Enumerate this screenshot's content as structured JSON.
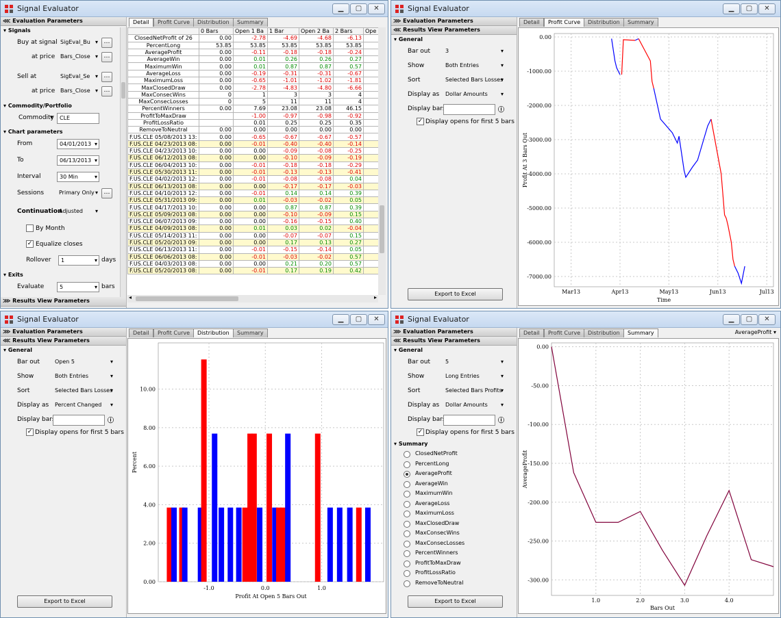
{
  "window_title": "Signal Evaluator",
  "tabs": [
    "Detail",
    "Profit Curve",
    "Distribution",
    "Summary"
  ],
  "panel": {
    "evaluation": "Evaluation Parameters",
    "results": "Results View Parameters"
  },
  "w1": {
    "signals": "Signals",
    "buy_at_signal": "Buy at signal",
    "buy_signal": "SigEval_Bu",
    "at_price": "at price",
    "buy_price": "Bars_Close",
    "sell_at": "Sell at",
    "sell_signal": "SigEval_Se",
    "sell_price": "Bars_Close",
    "commodity_group": "Commodity/Portfolio",
    "commodity_label": "Commodity",
    "commodity": "CLE",
    "chart_params": "Chart parameters",
    "from_label": "From",
    "from": "04/01/2013",
    "to_label": "To",
    "to": "06/13/2013",
    "interval_label": "Interval",
    "interval": "30 Min",
    "sessions_label": "Sessions",
    "sessions": "Primary Only",
    "continuation_label": "Continuation",
    "continuation": "Adjusted",
    "by_month": "By Month",
    "equalize": "Equalize closes",
    "rollover_label": "Rollover",
    "rollover": "1",
    "days": "days",
    "exits": "Exits",
    "evaluate_label": "Evaluate",
    "evaluate": "5",
    "bars": "bars",
    "table_headers": [
      "",
      "0 Bars",
      "Open 1 Ba",
      "1 Bar",
      "Open 2 Ba",
      "2 Bars",
      "Ope"
    ],
    "rows": [
      {
        "n": "ClosedNetProfit of 26",
        "v": [
          "0.00",
          "-2.78",
          "-4.69",
          "-4.68",
          "-6.13"
        ]
      },
      {
        "n": "PercentLong",
        "v": [
          "53.85",
          "53.85",
          "53.85",
          "53.85",
          "53.85"
        ]
      },
      {
        "n": "AverageProfit",
        "v": [
          "0.00",
          "-0.11",
          "-0.18",
          "-0.18",
          "-0.24"
        ]
      },
      {
        "n": "AverageWin",
        "v": [
          "0.00",
          "0.01",
          "0.26",
          "0.26",
          "0.27"
        ]
      },
      {
        "n": "MaximumWin",
        "v": [
          "0.00",
          "0.01",
          "0.87",
          "0.87",
          "0.57"
        ]
      },
      {
        "n": "AverageLoss",
        "v": [
          "0.00",
          "-0.19",
          "-0.31",
          "-0.31",
          "-0.67"
        ]
      },
      {
        "n": "MaximumLoss",
        "v": [
          "0.00",
          "-0.65",
          "-1.01",
          "-1.02",
          "-1.81"
        ]
      },
      {
        "n": "MaxClosedDraw",
        "v": [
          "0.00",
          "-2.78",
          "-4.83",
          "-4.80",
          "-6.66"
        ]
      },
      {
        "n": "MaxConsecWins",
        "v": [
          "0",
          "1",
          "3",
          "3",
          "4"
        ]
      },
      {
        "n": "MaxConsecLosses",
        "v": [
          "0",
          "5",
          "11",
          "11",
          "4"
        ]
      },
      {
        "n": "PercentWinners",
        "v": [
          "0.00",
          "7.69",
          "23.08",
          "23.08",
          "46.15"
        ]
      },
      {
        "n": "ProfitToMaxDraw",
        "v": [
          "",
          "-1.00",
          "-0.97",
          "-0.98",
          "-0.92"
        ]
      },
      {
        "n": "ProfitLossRatio",
        "v": [
          "",
          "0.01",
          "0.25",
          "0.25",
          "0.35"
        ]
      },
      {
        "n": "RemoveToNeutral",
        "v": [
          "0.00",
          "0.00",
          "0.00",
          "0.00",
          "0.00"
        ]
      },
      {
        "n": "F.US.CLE  05/08/2013 13:",
        "v": [
          "0.00",
          "-0.65",
          "-0.67",
          "-0.67",
          "-0.57"
        ]
      },
      {
        "n": "F.US.CLE  04/23/2013 08:",
        "v": [
          "0.00",
          "-0.01",
          "-0.40",
          "-0.40",
          "-0.14"
        ]
      },
      {
        "n": "F.US.CLE  04/23/2013 10:",
        "v": [
          "0.00",
          "0.00",
          "-0.09",
          "-0.08",
          "-0.25"
        ]
      },
      {
        "n": "F.US.CLE  06/12/2013 08:",
        "v": [
          "0.00",
          "0.00",
          "-0.10",
          "-0.09",
          "-0.19"
        ]
      },
      {
        "n": "F.US.CLE  06/04/2013 10:",
        "v": [
          "0.00",
          "-0.01",
          "-0.18",
          "-0.18",
          "-0.29"
        ]
      },
      {
        "n": "F.US.CLE  05/30/2013 11:",
        "v": [
          "0.00",
          "-0.01",
          "-0.13",
          "-0.13",
          "-0.41"
        ]
      },
      {
        "n": "F.US.CLE  04/02/2013 12:",
        "v": [
          "0.00",
          "-0.01",
          "-0.08",
          "-0.08",
          "0.04"
        ]
      },
      {
        "n": "F.US.CLE  06/13/2013 08:",
        "v": [
          "0.00",
          "0.00",
          "-0.17",
          "-0.17",
          "-0.03"
        ]
      },
      {
        "n": "F.US.CLE  04/10/2013 12:",
        "v": [
          "0.00",
          "-0.01",
          "0.14",
          "0.14",
          "0.39"
        ]
      },
      {
        "n": "F.US.CLE  05/31/2013 09:",
        "v": [
          "0.00",
          "0.01",
          "-0.03",
          "-0.02",
          "0.05"
        ]
      },
      {
        "n": "F.US.CLE  04/17/2013 10:",
        "v": [
          "0.00",
          "0.00",
          "0.87",
          "0.87",
          "0.39"
        ]
      },
      {
        "n": "F.US.CLE  05/09/2013 08:",
        "v": [
          "0.00",
          "0.00",
          "-0.10",
          "-0.09",
          "0.15"
        ]
      },
      {
        "n": "F.US.CLE  06/07/2013 09:",
        "v": [
          "0.00",
          "0.00",
          "-0.16",
          "-0.15",
          "0.40"
        ]
      },
      {
        "n": "F.US.CLE  04/09/2013 08:",
        "v": [
          "0.00",
          "0.01",
          "0.03",
          "0.02",
          "-0.04"
        ]
      },
      {
        "n": "F.US.CLE  05/14/2013 11:",
        "v": [
          "0.00",
          "0.00",
          "-0.07",
          "-0.07",
          "0.15"
        ]
      },
      {
        "n": "F.US.CLE  05/20/2013 09:",
        "v": [
          "0.00",
          "0.00",
          "0.17",
          "0.13",
          "0.27"
        ]
      },
      {
        "n": "F.US.CLE  06/13/2013 11:",
        "v": [
          "0.00",
          "-0.01",
          "-0.15",
          "-0.14",
          "0.05"
        ]
      },
      {
        "n": "F.US.CLE  06/06/2013 08:",
        "v": [
          "0.00",
          "-0.01",
          "-0.03",
          "-0.02",
          "0.57"
        ]
      },
      {
        "n": "F.US.CLE  04/03/2013 08:",
        "v": [
          "0.00",
          "0.00",
          "0.21",
          "0.20",
          "0.57"
        ]
      },
      {
        "n": "F.US.CLE  05/20/2013 08:",
        "v": [
          "0.00",
          "-0.01",
          "0.17",
          "0.19",
          "0.42"
        ]
      }
    ]
  },
  "w2": {
    "general": "General",
    "bar_out_label": "Bar out",
    "bar_out": "3",
    "show_label": "Show",
    "show": "Both Entries",
    "sort_label": "Sort",
    "sort": "Selected Bars Losses",
    "display_as_label": "Display as",
    "display_as": "Dollar Amounts",
    "display_bars_label": "Display bars",
    "display_opens": "Display opens for first 5 bars",
    "export": "Export to Excel"
  },
  "w3": {
    "general": "General",
    "bar_out_label": "Bar out",
    "bar_out": "Open 5",
    "show_label": "Show",
    "show": "Both Entries",
    "sort_label": "Sort",
    "sort": "Selected Bars Losses",
    "display_as_label": "Display as",
    "display_as": "Percent Changed",
    "display_bars_label": "Display bars",
    "display_opens": "Display opens for first 5 bars",
    "export": "Export to Excel"
  },
  "w4": {
    "general": "General",
    "bar_out_label": "Bar out",
    "bar_out": "5",
    "show_label": "Show",
    "show": "Long Entries",
    "sort_label": "Sort",
    "sort": "Selected Bars Profits",
    "display_as_label": "Display as",
    "display_as": "Dollar Amounts",
    "display_bars_label": "Display bars",
    "display_opens": "Display opens for first 5 bars",
    "summary": "Summary",
    "summary_items": [
      "ClosedNetProfit",
      "PercentLong",
      "AverageProfit",
      "AverageWin",
      "MaximumWin",
      "AverageLoss",
      "MaximumLoss",
      "MaxClosedDraw",
      "MaxConsecWins",
      "MaxConsecLosses",
      "PercentWinners",
      "ProfitToMaxDraw",
      "ProfitLossRatio",
      "RemoveToNeutral"
    ],
    "selected": "AverageProfit",
    "metric_dropdown": "AverageProfit",
    "export": "Export to Excel"
  },
  "chart_data": [
    {
      "type": "line",
      "xlabel": "Time",
      "ylabel": "Profit At 3 Bars Out",
      "ylim": [
        -7300,
        100
      ],
      "x_ticks": [
        "Mar13",
        "Apr13",
        "May13",
        "Jun13",
        "Jul13"
      ],
      "y_ticks": [
        "0.00",
        "-1000.00",
        "-2000.00",
        "-3000.00",
        "-4000.00",
        "-5000.00",
        "-6000.00",
        "-7000.00"
      ],
      "colors": {
        "long": "#ff0000",
        "short": "#0000ff"
      },
      "series": [
        {
          "color": "short",
          "values": [
            [
              0.49,
              -50
            ],
            [
              0.51,
              -700
            ],
            [
              0.52,
              -900
            ],
            [
              0.54,
              -1100
            ]
          ]
        },
        {
          "color": "long",
          "values": [
            [
              0.55,
              -1100
            ],
            [
              0.56,
              -80
            ],
            [
              0.63,
              -100
            ]
          ]
        },
        {
          "color": "short",
          "values": [
            [
              0.63,
              -100
            ],
            [
              0.65,
              -50
            ]
          ]
        },
        {
          "color": "long",
          "values": [
            [
              0.65,
              -50
            ],
            [
              0.72,
              -700
            ],
            [
              0.73,
              -1300
            ],
            [
              0.74,
              -1500
            ]
          ]
        },
        {
          "color": "short",
          "values": [
            [
              0.74,
              -1500
            ],
            [
              0.78,
              -2400
            ],
            [
              0.85,
              -2800
            ],
            [
              0.88,
              -3100
            ],
            [
              0.89,
              -2900
            ],
            [
              0.92,
              -3900
            ],
            [
              0.93,
              -4100
            ],
            [
              0.97,
              -3800
            ],
            [
              1.0,
              -3600
            ],
            [
              1.06,
              -2600
            ],
            [
              1.08,
              -2400
            ]
          ]
        },
        {
          "color": "long",
          "values": [
            [
              1.08,
              -2400
            ],
            [
              1.14,
              -4000
            ],
            [
              1.16,
              -5200
            ],
            [
              1.17,
              -5300
            ],
            [
              1.18,
              -5500
            ],
            [
              1.2,
              -6000
            ],
            [
              1.21,
              -6500
            ],
            [
              1.22,
              -6700
            ]
          ]
        },
        {
          "color": "short",
          "values": [
            [
              1.22,
              -6700
            ],
            [
              1.24,
              -6900
            ],
            [
              1.26,
              -7200
            ],
            [
              1.28,
              -6700
            ]
          ]
        }
      ]
    },
    {
      "type": "bar",
      "xlabel": "Profit At Open 5 Bars Out",
      "ylabel": "Percent",
      "ylim": [
        0,
        12.4
      ],
      "y_ticks": [
        "0.00",
        "2.00",
        "4.00",
        "6.00",
        "8.00",
        "10.00"
      ],
      "x_ticks": [
        "-1.0",
        "0.0",
        "1.0"
      ],
      "colors": {
        "long": "#ff0000",
        "short": "#0000ff"
      },
      "bars": [
        [
          -1.7,
          3.85,
          "long"
        ],
        [
          -1.62,
          3.85,
          "short"
        ],
        [
          -1.48,
          3.85,
          "long"
        ],
        [
          -1.43,
          3.85,
          "short"
        ],
        [
          -1.15,
          3.85,
          "short"
        ],
        [
          -1.09,
          11.54,
          "long"
        ],
        [
          -0.9,
          7.69,
          "short"
        ],
        [
          -0.78,
          3.85,
          "short"
        ],
        [
          -0.62,
          3.85,
          "short"
        ],
        [
          -0.47,
          3.85,
          "short"
        ],
        [
          -0.36,
          3.85,
          "long"
        ],
        [
          -0.27,
          7.69,
          "long"
        ],
        [
          -0.2,
          7.69,
          "long"
        ],
        [
          -0.1,
          3.85,
          "short"
        ],
        [
          0.07,
          7.69,
          "long"
        ],
        [
          0.17,
          3.85,
          "short"
        ],
        [
          0.24,
          3.85,
          "long"
        ],
        [
          0.31,
          3.85,
          "long"
        ],
        [
          0.4,
          7.69,
          "short"
        ],
        [
          0.93,
          7.69,
          "long"
        ],
        [
          1.15,
          3.85,
          "short"
        ],
        [
          1.32,
          3.85,
          "short"
        ],
        [
          1.5,
          3.85,
          "short"
        ],
        [
          1.66,
          3.85,
          "long"
        ],
        [
          1.82,
          3.85,
          "short"
        ]
      ]
    },
    {
      "type": "line",
      "xlabel": "Bars Out",
      "ylabel": "AverageProfit",
      "ylim": [
        -320,
        5
      ],
      "x_ticks": [
        "1.0",
        "2.0",
        "3.0",
        "4.0"
      ],
      "y_ticks": [
        "0.00",
        "-50.00",
        "-100.00",
        "-150.00",
        "-200.00",
        "-250.00",
        "-300.00"
      ],
      "color": "#80003a",
      "x": [
        0,
        0.5,
        1,
        1.5,
        2,
        2.5,
        3,
        3.5,
        4,
        4.5,
        5
      ],
      "values": [
        0,
        -162,
        -226,
        -226,
        -212,
        -262,
        -307,
        -243,
        -185,
        -274,
        -283
      ]
    }
  ]
}
